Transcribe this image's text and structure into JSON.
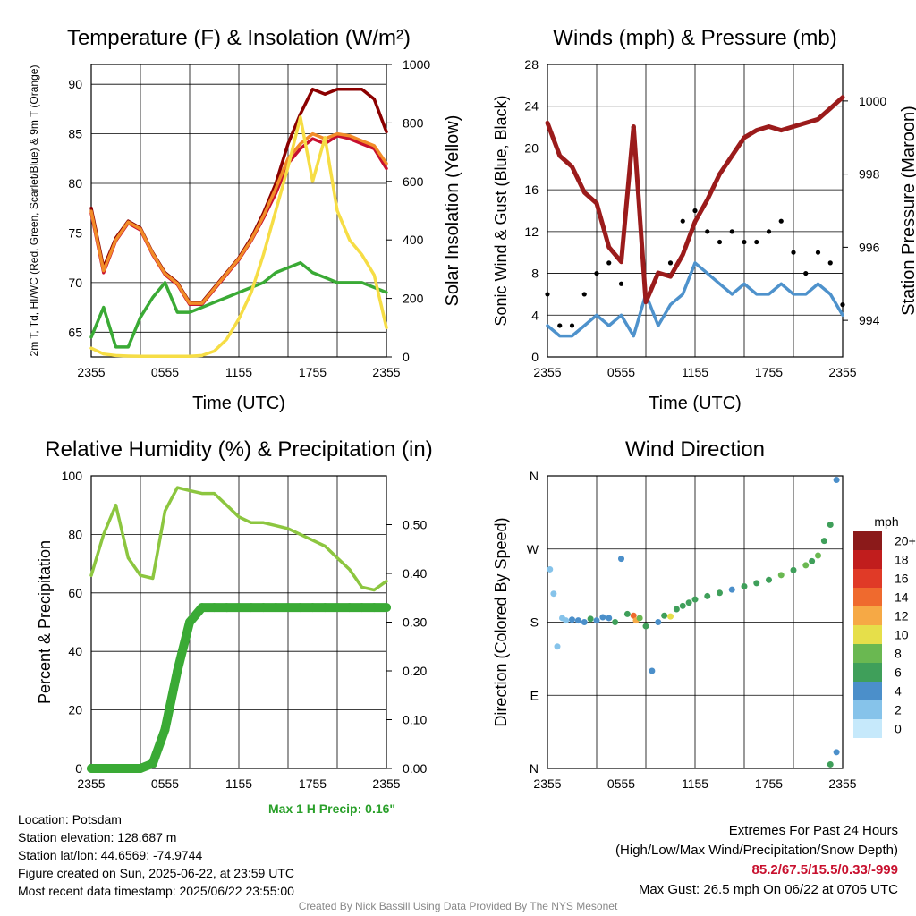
{
  "figure": {
    "credit": "Created By Nick Bassill Using Data Provided By The NYS Mesonet",
    "max_precip_label": "Max 1 H Precip: 0.16\"",
    "info_lines": [
      "Location: Potsdam",
      "Station elevation: 128.687 m",
      "Station lat/lon: 44.6569; -74.9744",
      "Figure created on Sun, 2025-06-22, at 23:59 UTC",
      "Most recent data timestamp: 2025/06/22 23:55:00"
    ],
    "extremes_title": "Extremes For Past 24 Hours",
    "extremes_subtitle": "(High/Low/Max Wind/Precipitation/Snow Depth)",
    "extremes_values": "85.2/67.5/15.5/0.33/-999",
    "max_gust": "Max Gust: 26.5 mph On 06/22 at 0705 UTC"
  },
  "chart_data": [
    {
      "type": "line",
      "title": "Temperature (F) & Insolation (W/m²)",
      "xlabel": "Time (UTC)",
      "ylabel": "2m T, Td, HI/WC (Red, Green, Scarlet/Blue) & 9m T (Orange)",
      "ylabel2": "Solar Insolation (Yellow)",
      "x_ticks": [
        "2355",
        "0555",
        "1155",
        "1755",
        "2355"
      ],
      "y_ticks": [
        "65",
        "70",
        "75",
        "80",
        "85",
        "90"
      ],
      "y2_ticks": [
        "0",
        "200",
        "400",
        "600",
        "800",
        "1000"
      ],
      "ylim": [
        62.5,
        92
      ],
      "y2lim": [
        0,
        1000
      ],
      "x_hours": [
        0,
        1,
        2,
        3,
        4,
        5,
        6,
        7,
        8,
        9,
        10,
        11,
        12,
        13,
        14,
        15,
        16,
        17,
        18,
        19,
        20,
        21,
        22,
        23,
        24
      ],
      "series": [
        {
          "color": "#8b0000",
          "values": [
            77.5,
            71.5,
            74.5,
            76.2,
            75.5,
            73.0,
            71.0,
            70.0,
            68.0,
            68.0,
            69.5,
            71.0,
            72.5,
            74.5,
            77.0,
            80.0,
            84.0,
            87.0,
            89.5,
            89.0,
            89.5,
            89.5,
            89.5,
            88.5,
            85.2
          ]
        },
        {
          "color": "#c8102e",
          "values": [
            77.0,
            71.0,
            74.2,
            76.0,
            75.3,
            72.8,
            70.8,
            69.8,
            67.8,
            67.8,
            69.3,
            70.8,
            72.3,
            74.2,
            76.5,
            79.0,
            82.0,
            83.5,
            84.5,
            84.0,
            84.8,
            84.5,
            84.0,
            83.5,
            81.5
          ]
        },
        {
          "color": "#f28c28",
          "values": [
            77.2,
            71.2,
            74.3,
            76.1,
            75.4,
            72.9,
            70.9,
            69.9,
            67.9,
            67.9,
            69.4,
            70.9,
            72.4,
            74.3,
            76.7,
            79.5,
            82.5,
            84.0,
            85.0,
            84.5,
            85.0,
            84.8,
            84.3,
            83.8,
            82.0
          ]
        },
        {
          "color": "#3aaa35",
          "values": [
            64.5,
            67.5,
            63.5,
            63.5,
            66.5,
            68.5,
            70.0,
            67.0,
            67.0,
            67.5,
            68.0,
            68.5,
            69.0,
            69.5,
            70.0,
            71.0,
            71.5,
            72.0,
            71.0,
            70.5,
            70.0,
            70.0,
            70.0,
            69.5,
            69.0
          ]
        },
        {
          "color": "#f6dd45",
          "values": [
            30,
            10,
            5,
            3,
            2,
            2,
            2,
            2,
            2,
            5,
            20,
            60,
            130,
            220,
            350,
            500,
            650,
            820,
            600,
            750,
            500,
            400,
            350,
            280,
            100
          ]
        }
      ]
    },
    {
      "type": "line",
      "title": "Winds (mph) & Pressure (mb)",
      "xlabel": "Time (UTC)",
      "ylabel": "Sonic Wind & Gust (Blue, Black)",
      "ylabel2": "Station Pressure (Maroon)",
      "x_ticks": [
        "2355",
        "0555",
        "1155",
        "1755",
        "2355"
      ],
      "y_ticks": [
        "0",
        "4",
        "8",
        "12",
        "16",
        "20",
        "24",
        "28"
      ],
      "y2_ticks": [
        "994",
        "996",
        "998",
        "1000"
      ],
      "ylim": [
        0,
        28
      ],
      "y2lim": [
        993.0,
        1001.0
      ],
      "x_hours": [
        0,
        1,
        2,
        3,
        4,
        5,
        6,
        7,
        8,
        9,
        10,
        11,
        12,
        13,
        14,
        15,
        16,
        17,
        18,
        19,
        20,
        21,
        22,
        23,
        24
      ],
      "series": [
        {
          "color": "#4e92cc",
          "values": [
            3,
            2,
            2,
            3,
            4,
            3,
            4,
            2,
            6,
            3,
            5,
            6,
            9,
            8,
            7,
            6,
            7,
            6,
            6,
            7,
            6,
            6,
            7,
            6,
            4
          ]
        },
        {
          "color": "#000000",
          "kind": "points",
          "values": [
            6,
            3,
            3,
            6,
            8,
            9,
            7,
            22,
            6,
            8,
            9,
            13,
            14,
            12,
            11,
            12,
            11,
            11,
            12,
            13,
            10,
            8,
            10,
            9,
            5
          ]
        },
        {
          "color": "#9b1b1b",
          "values": [
            999.4,
            998.5,
            998.2,
            997.5,
            997.2,
            996.0,
            995.6,
            999.3,
            994.5,
            995.3,
            995.2,
            995.8,
            996.7,
            997.3,
            998.0,
            998.5,
            999.0,
            999.2,
            999.3,
            999.2,
            999.3,
            999.4,
            999.5,
            999.8,
            1000.1
          ]
        }
      ]
    },
    {
      "type": "line",
      "title": "Relative Humidity (%) & Precipitation (in)",
      "xlabel": "",
      "ylabel": "Percent & Precipitation",
      "x_ticks": [
        "2355",
        "0555",
        "1155",
        "1755",
        "2355"
      ],
      "y_ticks": [
        "0",
        "20",
        "40",
        "60",
        "80",
        "100"
      ],
      "y2_ticks": [
        "0.00",
        "0.10",
        "0.20",
        "0.30",
        "0.40",
        "0.50"
      ],
      "ylim": [
        0,
        100
      ],
      "y2lim": [
        0,
        0.6
      ],
      "x_hours": [
        0,
        1,
        2,
        3,
        4,
        5,
        6,
        7,
        8,
        9,
        10,
        11,
        12,
        13,
        14,
        15,
        16,
        17,
        18,
        19,
        20,
        21,
        22,
        23,
        24
      ],
      "series": [
        {
          "color": "#8cc63f",
          "values": [
            66,
            80,
            90,
            72,
            66,
            65,
            88,
            96,
            95,
            94,
            94,
            90,
            86,
            84,
            84,
            83,
            82,
            80,
            78,
            76,
            72,
            68,
            62,
            61,
            64
          ]
        },
        {
          "color": "#3aaa35",
          "kind": "precip",
          "values": [
            0,
            0,
            0,
            0,
            0,
            0.01,
            0.08,
            0.2,
            0.3,
            0.33,
            0.33,
            0.33,
            0.33,
            0.33,
            0.33,
            0.33,
            0.33,
            0.33,
            0.33,
            0.33,
            0.33,
            0.33,
            0.33,
            0.33,
            0.33
          ]
        }
      ]
    },
    {
      "type": "scatter",
      "title": "Wind Direction",
      "ylabel": "Direction (Colored By Speed)",
      "x_ticks": [
        "2355",
        "0555",
        "1155",
        "1755",
        "2355"
      ],
      "y_ticks": [
        "N",
        "E",
        "S",
        "W",
        "N"
      ],
      "ylim": [
        0,
        360
      ],
      "legend_title": "mph",
      "legend_labels": [
        "0",
        "2",
        "4",
        "6",
        "8",
        "10",
        "12",
        "14",
        "16",
        "18",
        "20+"
      ],
      "legend_colors": [
        "#c6e9fb",
        "#86c3ea",
        "#4b8fca",
        "#3f9f5a",
        "#6ab851",
        "#e6df4a",
        "#f6a945",
        "#ef6a2e",
        "#e03a27",
        "#c11d1d",
        "#8b1a1a"
      ],
      "points": [
        {
          "h": 0.2,
          "dir": 245,
          "spd": 2
        },
        {
          "h": 0.5,
          "dir": 215,
          "spd": 2
        },
        {
          "h": 0.8,
          "dir": 150,
          "spd": 1
        },
        {
          "h": 1.2,
          "dir": 185,
          "spd": 1
        },
        {
          "h": 1.5,
          "dir": 182,
          "spd": 2
        },
        {
          "h": 2.0,
          "dir": 183,
          "spd": 3
        },
        {
          "h": 2.5,
          "dir": 182,
          "spd": 4
        },
        {
          "h": 3.0,
          "dir": 180,
          "spd": 3
        },
        {
          "h": 3.5,
          "dir": 184,
          "spd": 5
        },
        {
          "h": 4.0,
          "dir": 182,
          "spd": 4
        },
        {
          "h": 4.5,
          "dir": 186,
          "spd": 3
        },
        {
          "h": 5.0,
          "dir": 185,
          "spd": 4
        },
        {
          "h": 5.5,
          "dir": 180,
          "spd": 5
        },
        {
          "h": 6.0,
          "dir": 258,
          "spd": 4
        },
        {
          "h": 6.5,
          "dir": 190,
          "spd": 6
        },
        {
          "h": 7.0,
          "dir": 188,
          "spd": 14
        },
        {
          "h": 7.2,
          "dir": 182,
          "spd": 12
        },
        {
          "h": 7.5,
          "dir": 185,
          "spd": 8
        },
        {
          "h": 8.0,
          "dir": 175,
          "spd": 6
        },
        {
          "h": 8.5,
          "dir": 120,
          "spd": 3
        },
        {
          "h": 9.0,
          "dir": 180,
          "spd": 4
        },
        {
          "h": 9.5,
          "dir": 188,
          "spd": 6
        },
        {
          "h": 10.0,
          "dir": 187,
          "spd": 10
        },
        {
          "h": 10.5,
          "dir": 196,
          "spd": 6
        },
        {
          "h": 11.0,
          "dir": 200,
          "spd": 5
        },
        {
          "h": 11.5,
          "dir": 204,
          "spd": 6
        },
        {
          "h": 12.0,
          "dir": 208,
          "spd": 5
        },
        {
          "h": 13.0,
          "dir": 212,
          "spd": 6
        },
        {
          "h": 14.0,
          "dir": 216,
          "spd": 5
        },
        {
          "h": 15.0,
          "dir": 220,
          "spd": 4
        },
        {
          "h": 16.0,
          "dir": 224,
          "spd": 6
        },
        {
          "h": 17.0,
          "dir": 228,
          "spd": 5
        },
        {
          "h": 18.0,
          "dir": 232,
          "spd": 6
        },
        {
          "h": 19.0,
          "dir": 238,
          "spd": 7
        },
        {
          "h": 20.0,
          "dir": 244,
          "spd": 6
        },
        {
          "h": 21.0,
          "dir": 250,
          "spd": 7
        },
        {
          "h": 21.5,
          "dir": 255,
          "spd": 6
        },
        {
          "h": 22.0,
          "dir": 262,
          "spd": 7
        },
        {
          "h": 22.5,
          "dir": 280,
          "spd": 6
        },
        {
          "h": 23.0,
          "dir": 300,
          "spd": 5
        },
        {
          "h": 23.5,
          "dir": 355,
          "spd": 4
        },
        {
          "h": 23.0,
          "dir": 5,
          "spd": 5
        },
        {
          "h": 23.5,
          "dir": 20,
          "spd": 4
        }
      ]
    }
  ]
}
